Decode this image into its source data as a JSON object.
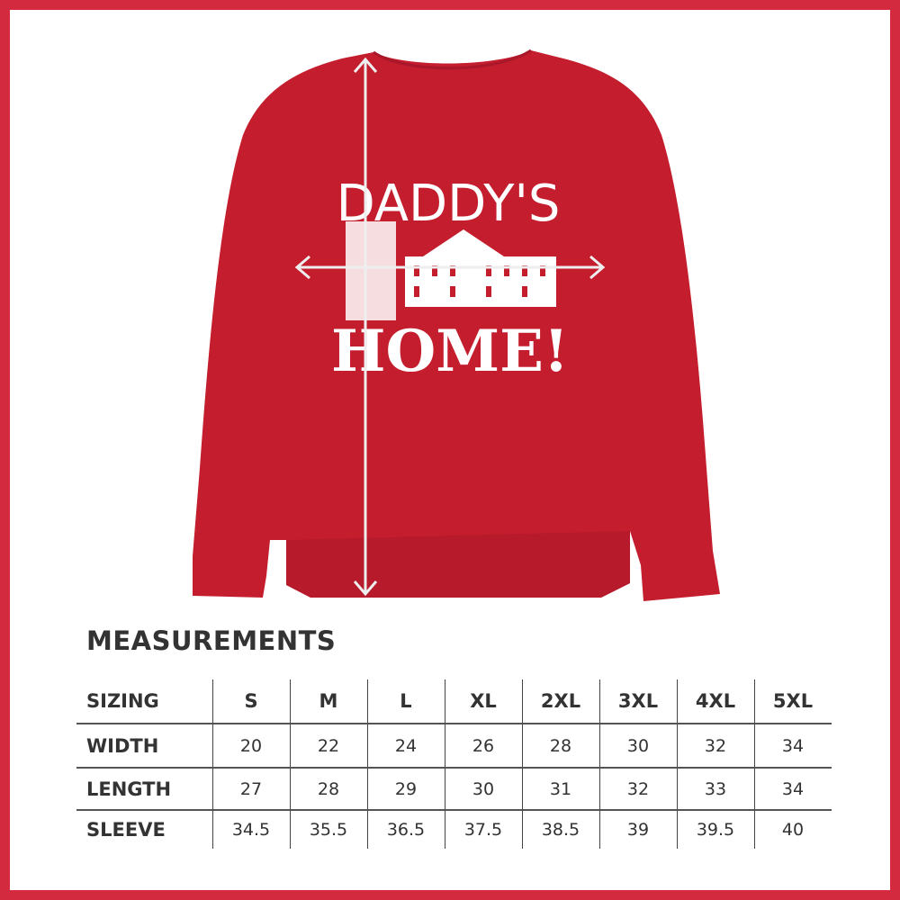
{
  "product": {
    "color": "#c41d2d",
    "print_line1": "DADDY'S",
    "print_line2": "HOME!"
  },
  "frame_color": "#d42a40",
  "measurements": {
    "title": "MEASUREMENTS",
    "header": [
      "SIZING",
      "S",
      "M",
      "L",
      "XL",
      "2XL",
      "3XL",
      "4XL",
      "5XL"
    ],
    "rows": [
      [
        "WIDTH",
        "20",
        "22",
        "24",
        "26",
        "28",
        "30",
        "32",
        "34"
      ],
      [
        "LENGTH",
        "27",
        "28",
        "29",
        "30",
        "31",
        "32",
        "33",
        "34"
      ],
      [
        "SLEEVE",
        "34.5",
        "35.5",
        "36.5",
        "37.5",
        "38.5",
        "39",
        "39.5",
        "40"
      ]
    ]
  }
}
